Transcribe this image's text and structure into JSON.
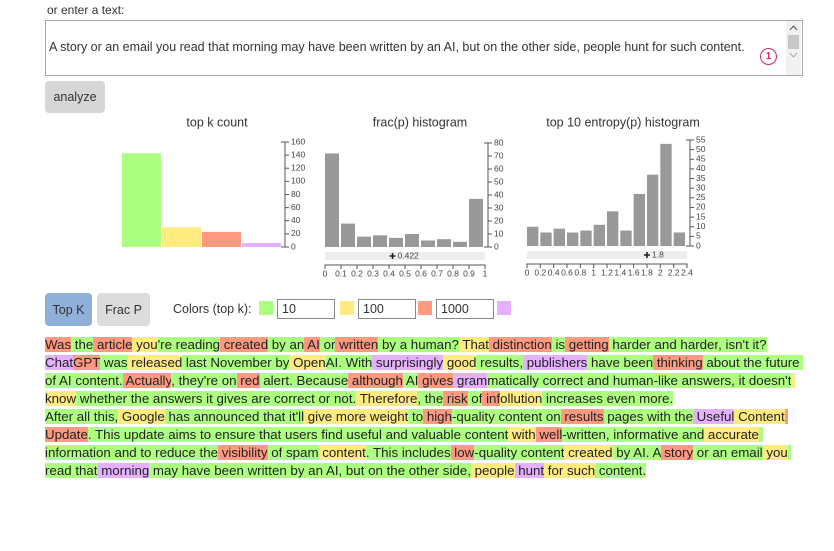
{
  "input_label": "or enter a text:",
  "textarea_text": "A story or an email you read that morning may have been written by an AI, but on the other side, people hunt for such content.",
  "textarea_badge": "1",
  "analyze_button": "analyze",
  "mode_buttons": [
    "Top K",
    "Frac P"
  ],
  "colors_label": "Colors (top k):",
  "topk_thresholds": [
    10,
    100,
    1000
  ],
  "chart_data": [
    {
      "type": "bar",
      "title": "top k count",
      "values": [
        143,
        30,
        23,
        6
      ],
      "colors": [
        "#adff80",
        "#ffeb80",
        "#ff9980",
        "#e5b0ff"
      ],
      "ylim": [
        0,
        160
      ],
      "yticks": [
        0,
        20,
        40,
        60,
        80,
        100,
        120,
        140,
        160
      ]
    },
    {
      "type": "histogram",
      "title": "frac(p) histogram",
      "bins": [
        0,
        0.1,
        0.2,
        0.3,
        0.4,
        0.5,
        0.6,
        0.7,
        0.8,
        0.9,
        1
      ],
      "values": [
        72,
        18,
        8,
        9,
        7,
        10,
        5,
        6,
        4,
        37
      ],
      "color": "#999999",
      "xlim": [
        0,
        1
      ],
      "xticks": [
        0,
        0.1,
        0.2,
        0.3,
        0.4,
        0.5,
        0.6,
        0.7,
        0.8,
        0.9,
        1
      ],
      "ylim": [
        0,
        80
      ],
      "yticks": [
        0,
        10,
        20,
        30,
        40,
        50,
        60,
        70,
        80
      ],
      "marker": 0.422
    },
    {
      "type": "histogram",
      "title": "top 10 entropy(p) histogram",
      "bins": [
        0,
        0.2,
        0.4,
        0.6,
        0.8,
        1,
        1.2,
        1.4,
        1.6,
        1.8,
        2,
        2.2,
        2.4
      ],
      "values": [
        10,
        7,
        9,
        7,
        8,
        11,
        18,
        8,
        27,
        37,
        53,
        7
      ],
      "color": "#999999",
      "xlim": [
        0,
        2.4
      ],
      "xticks": [
        0,
        0.2,
        0.4,
        0.6,
        0.8,
        1,
        1.2,
        1.4,
        1.6,
        1.8,
        2,
        2.2,
        2.4
      ],
      "ylim": [
        0,
        55
      ],
      "yticks": [
        0,
        5,
        10,
        15,
        20,
        25,
        30,
        35,
        40,
        45,
        50,
        55
      ],
      "marker": 1.8
    }
  ],
  "text_tokens": [
    [
      [
        "Was",
        2
      ],
      [
        " the",
        0
      ],
      [
        " article",
        2
      ],
      [
        " you",
        1
      ],
      [
        "'re",
        0
      ],
      [
        " reading",
        0
      ],
      [
        " created",
        2
      ],
      [
        " by",
        0
      ],
      [
        " an",
        0
      ],
      [
        " AI",
        2
      ],
      [
        " or",
        0
      ],
      [
        " written",
        2
      ],
      [
        " by",
        0
      ],
      [
        " a",
        0
      ],
      [
        " human",
        0
      ],
      [
        "?",
        0
      ],
      [
        " That",
        1
      ],
      [
        " distinction",
        2
      ],
      [
        " is",
        0
      ],
      [
        " getting",
        2
      ],
      [
        " harder",
        0
      ],
      [
        " and",
        0
      ],
      [
        " harder",
        0
      ],
      [
        ",",
        0
      ],
      [
        " isn",
        0
      ],
      [
        "'t",
        0
      ],
      [
        " it",
        0
      ],
      [
        "?",
        0
      ]
    ],
    [
      [
        "Chat",
        3
      ],
      [
        "GPT",
        2
      ],
      [
        " was",
        0
      ],
      [
        " released",
        1
      ],
      [
        " last",
        0
      ],
      [
        " November",
        0
      ],
      [
        " by",
        0
      ],
      [
        " Open",
        1
      ],
      [
        "AI",
        0
      ],
      [
        ".",
        0
      ],
      [
        " With",
        0
      ],
      [
        " surprisingly",
        3
      ],
      [
        " good",
        1
      ],
      [
        " results",
        0
      ],
      [
        ",",
        0
      ],
      [
        " publishers",
        3
      ],
      [
        " have",
        0
      ],
      [
        " been",
        0
      ],
      [
        " thinking",
        2
      ],
      [
        " about",
        0
      ],
      [
        " the",
        0
      ],
      [
        " future",
        0
      ],
      [
        " of",
        0
      ],
      [
        " AI",
        0
      ],
      [
        " content",
        0
      ],
      [
        ".",
        0
      ],
      [
        " Actually",
        2
      ],
      [
        ",",
        0
      ],
      [
        " they",
        0
      ],
      [
        "'re",
        0
      ],
      [
        " on",
        0
      ],
      [
        " red",
        2
      ],
      [
        " alert",
        0
      ],
      [
        ".",
        0
      ],
      [
        " Because",
        0
      ],
      [
        " although",
        2
      ],
      [
        " AI",
        0
      ],
      [
        " gives",
        2
      ],
      [
        " gram",
        3
      ],
      [
        "matically",
        0
      ],
      [
        " correct",
        0
      ],
      [
        " and",
        0
      ],
      [
        " human",
        0
      ],
      [
        "-",
        0
      ],
      [
        "like",
        0
      ],
      [
        " answers",
        0
      ],
      [
        ",",
        0
      ],
      [
        " it",
        0
      ],
      [
        " doesn",
        0
      ],
      [
        "'t",
        0
      ],
      [
        " know",
        1
      ],
      [
        " whether",
        0
      ],
      [
        " the",
        0
      ],
      [
        " answers",
        0
      ],
      [
        " it",
        0
      ],
      [
        " gives",
        0
      ],
      [
        " are",
        0
      ],
      [
        " correct",
        0
      ],
      [
        " or",
        0
      ],
      [
        " not",
        0
      ],
      [
        ".",
        0
      ],
      [
        " Therefore",
        1
      ],
      [
        ",",
        0
      ],
      [
        " the",
        0
      ],
      [
        " risk",
        2
      ],
      [
        " of",
        0
      ],
      [
        " inf",
        2
      ],
      [
        "ollution",
        1
      ],
      [
        " increases",
        0
      ],
      [
        " even",
        0
      ],
      [
        " more",
        0
      ],
      [
        ".",
        0
      ]
    ],
    [
      [
        "After",
        0
      ],
      [
        " all",
        0
      ],
      [
        " this",
        0
      ],
      [
        ",",
        0
      ],
      [
        " Google",
        1
      ],
      [
        " has",
        0
      ],
      [
        " announced",
        0
      ],
      [
        " that",
        0
      ],
      [
        " it",
        0
      ],
      [
        "'ll",
        0
      ],
      [
        " give",
        1
      ],
      [
        " more",
        1
      ],
      [
        " weight",
        1
      ],
      [
        " to",
        0
      ],
      [
        " high",
        2
      ],
      [
        "-",
        0
      ],
      [
        "quality",
        0
      ],
      [
        " content",
        0
      ],
      [
        " on",
        0
      ],
      [
        " results",
        2
      ],
      [
        " pages",
        0
      ],
      [
        " with",
        0
      ],
      [
        " the",
        0
      ],
      [
        " Useful",
        3
      ],
      [
        " Content",
        1
      ],
      [
        " Update",
        2
      ],
      [
        ".",
        0
      ],
      [
        " This",
        0
      ],
      [
        " update",
        0
      ],
      [
        " aims",
        0
      ],
      [
        " to",
        0
      ],
      [
        " ensure",
        0
      ],
      [
        " that",
        0
      ],
      [
        " users",
        0
      ],
      [
        " find",
        0
      ],
      [
        " useful",
        0
      ],
      [
        " and",
        0
      ],
      [
        " valuable",
        0
      ],
      [
        " content",
        0
      ],
      [
        " with",
        1
      ],
      [
        " well",
        2
      ],
      [
        "-",
        0
      ],
      [
        "written",
        0
      ],
      [
        ",",
        0
      ],
      [
        " informative",
        0
      ],
      [
        " and",
        0
      ],
      [
        " accurate",
        1
      ],
      [
        " information",
        0
      ],
      [
        " and",
        0
      ],
      [
        " to",
        0
      ],
      [
        " reduce",
        0
      ],
      [
        " the",
        0
      ],
      [
        " visibility",
        2
      ],
      [
        " of",
        0
      ],
      [
        " spam",
        0
      ],
      [
        " content",
        1
      ],
      [
        ".",
        0
      ],
      [
        " This",
        0
      ],
      [
        " includes",
        0
      ],
      [
        " low",
        2
      ],
      [
        "-",
        0
      ],
      [
        "quality",
        0
      ],
      [
        " content",
        0
      ],
      [
        " created",
        1
      ],
      [
        " by",
        0
      ],
      [
        " AI",
        0
      ],
      [
        ".",
        0
      ],
      [
        " A",
        0
      ],
      [
        " story",
        2
      ],
      [
        " or",
        0
      ],
      [
        " an",
        0
      ],
      [
        " email",
        0
      ],
      [
        " you",
        1
      ],
      [
        " read",
        0
      ],
      [
        " that",
        0
      ],
      [
        " morning",
        3
      ],
      [
        " may",
        0
      ],
      [
        " have",
        0
      ],
      [
        " been",
        0
      ],
      [
        " written",
        0
      ],
      [
        " by",
        0
      ],
      [
        " an",
        0
      ],
      [
        " AI",
        0
      ],
      [
        ",",
        0
      ],
      [
        " but",
        0
      ],
      [
        " on",
        0
      ],
      [
        " the",
        0
      ],
      [
        " other",
        0
      ],
      [
        " side",
        0
      ],
      [
        ",",
        0
      ],
      [
        " people",
        1
      ],
      [
        " hunt",
        3
      ],
      [
        " for",
        1
      ],
      [
        " such",
        1
      ],
      [
        " content",
        0
      ],
      [
        ".",
        0
      ]
    ]
  ]
}
